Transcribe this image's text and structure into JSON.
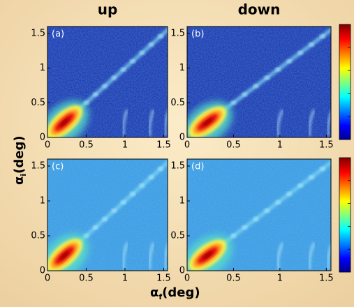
{
  "chart_data": [
    {
      "type": "heatmap",
      "title": "up",
      "panel": "(a)",
      "background": "#1d3fb0",
      "ylabel": [
        "α",
        "i",
        "(deg)"
      ],
      "xlim": [
        0,
        1.55
      ],
      "ylim": [
        0,
        1.6
      ],
      "xticks": [
        0,
        0.5,
        1,
        1.5
      ],
      "yticks": [
        0,
        0.5,
        1,
        1.5
      ]
    },
    {
      "type": "heatmap",
      "title": "down",
      "panel": "(b)",
      "background": "#1d3fb0",
      "xlim": [
        0,
        1.55
      ],
      "ylim": [
        0,
        1.6
      ],
      "xticks": [
        0,
        0.5,
        1,
        1.5
      ],
      "yticks": [
        0,
        0.5,
        1,
        1.5
      ]
    },
    {
      "type": "heatmap",
      "panel": "(c)",
      "background": "#3b9fe2",
      "xlabel": [
        "α",
        "f",
        "(deg)"
      ],
      "xlim": [
        0,
        1.55
      ],
      "ylim": [
        0,
        1.6
      ],
      "xticks": [
        0,
        0.5,
        1,
        1.5
      ],
      "yticks": [
        0,
        0.5,
        1,
        1.5
      ]
    },
    {
      "type": "heatmap",
      "panel": "(d)",
      "background": "#3b9fe2",
      "xlim": [
        0,
        1.55
      ],
      "ylim": [
        0,
        1.6
      ],
      "xticks": [
        0,
        0.5,
        1,
        1.5
      ],
      "yticks": [
        0,
        0.5,
        1,
        1.5
      ]
    }
  ]
}
